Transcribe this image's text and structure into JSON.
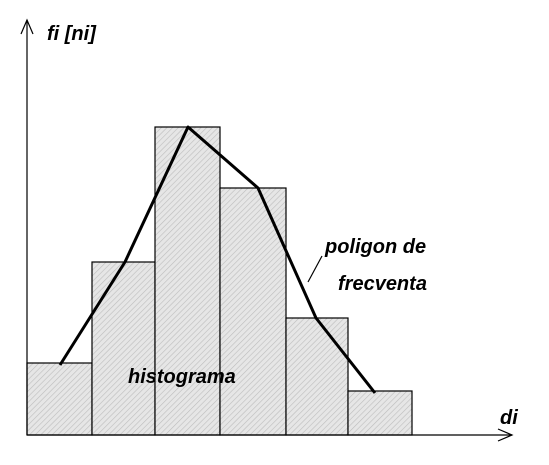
{
  "y_axis_label": "fi [ni]",
  "x_axis_label": "di",
  "histogram_label": "histograma",
  "polygon_label": [
    "poligon de",
    "frecventa"
  ]
}
